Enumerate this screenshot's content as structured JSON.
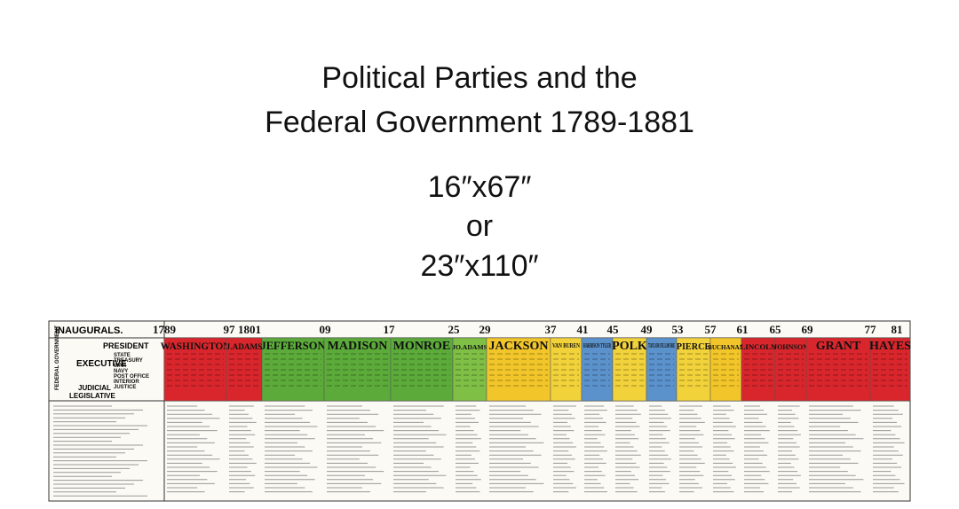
{
  "title_lines": [
    "Political Parties and the",
    "Federal Government 1789-1881"
  ],
  "sizes": [
    "16″x67″",
    "or",
    "23″x110″"
  ],
  "timeline": {
    "header": "INAUGURALS.",
    "years": [
      "1789",
      "97",
      "1801",
      "09",
      "17",
      "25",
      "29",
      "37",
      "41",
      "45",
      "49",
      "53",
      "57",
      "61",
      "65",
      "69",
      "77",
      "81"
    ],
    "row_labels": [
      "PRESIDENT",
      "EXECUTIVE",
      "JUDICIAL",
      "LEGISLATIVE"
    ],
    "side_label": "FEDERAL GOVERNMENT",
    "departments": [
      "STATE",
      "TREASURY",
      "WAR",
      "NAVY",
      "POST OFFICE",
      "INTERIOR",
      "JUSTICE"
    ],
    "presidents": [
      {
        "name": "WASHINGTON",
        "color": "#d8262c"
      },
      {
        "name": "J.ADAMS",
        "color": "#d8262c"
      },
      {
        "name": "JEFFERSON",
        "color": "#5cab3a"
      },
      {
        "name": "MADISON",
        "color": "#5cab3a"
      },
      {
        "name": "MONROE",
        "color": "#5cab3a"
      },
      {
        "name": "JO.ADAMS",
        "color": "#7fbf45"
      },
      {
        "name": "JACKSON",
        "color": "#f2c62a"
      },
      {
        "name": "VAN BUREN",
        "color": "#f2d23a"
      },
      {
        "name": "HARRISON TYLER",
        "color": "#5b92cc"
      },
      {
        "name": "POLK",
        "color": "#f2d23a"
      },
      {
        "name": "TAYLOR FILLMORE",
        "color": "#5b92cc"
      },
      {
        "name": "PIERCE",
        "color": "#f2d23a"
      },
      {
        "name": "BUCHANAN",
        "color": "#f2c62a"
      },
      {
        "name": "LINCOLN",
        "color": "#d8262c"
      },
      {
        "name": "JOHNSON",
        "color": "#d8262c"
      },
      {
        "name": "GRANT",
        "color": "#d8262c"
      },
      {
        "name": "HAYES",
        "color": "#d8262c"
      }
    ]
  }
}
